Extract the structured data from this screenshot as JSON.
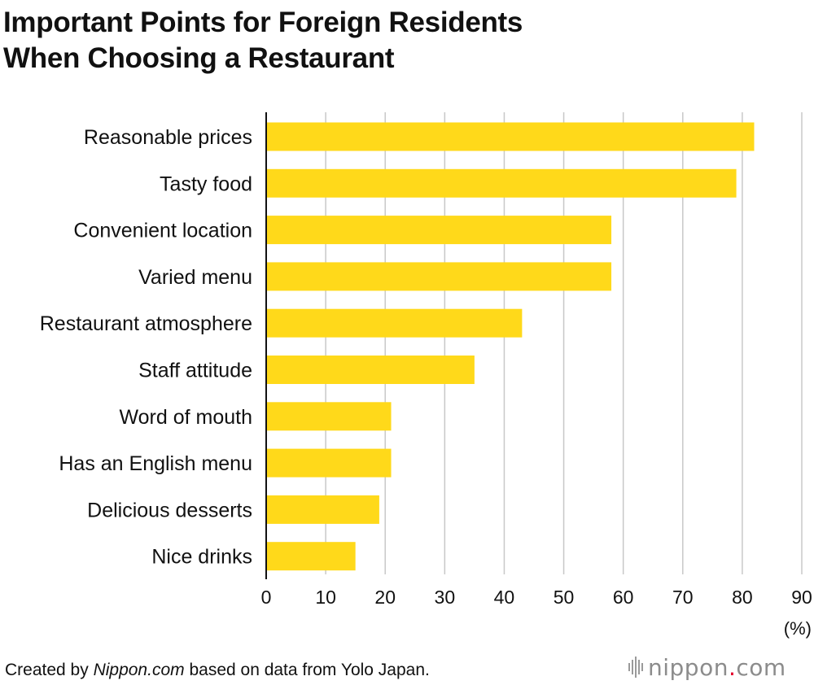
{
  "title_line1": "Important Points for Foreign Residents",
  "title_line2": "When Choosing a Restaurant",
  "chart_data": {
    "type": "bar",
    "orientation": "horizontal",
    "categories": [
      "Reasonable prices",
      "Tasty food",
      "Convenient location",
      "Varied menu",
      "Restaurant atmosphere",
      "Staff attitude",
      "Word of mouth",
      "Has an English menu",
      "Delicious desserts",
      "Nice drinks"
    ],
    "values": [
      82,
      79,
      58,
      58,
      43,
      35,
      21,
      21,
      19,
      15
    ],
    "xlim": [
      0,
      90
    ],
    "xticks": [
      0,
      10,
      20,
      30,
      40,
      50,
      60,
      70,
      80,
      90
    ],
    "unit": "(%)",
    "grid": true,
    "bar_color": "#ffd91a",
    "grid_color": "#c8c8c8"
  },
  "footer": {
    "prefix": "Created by ",
    "source_name": "Nippon.com",
    "suffix": " based on data from Yolo Japan."
  },
  "logo": {
    "name": "nippon",
    "dot": ".",
    "tld": "com"
  }
}
